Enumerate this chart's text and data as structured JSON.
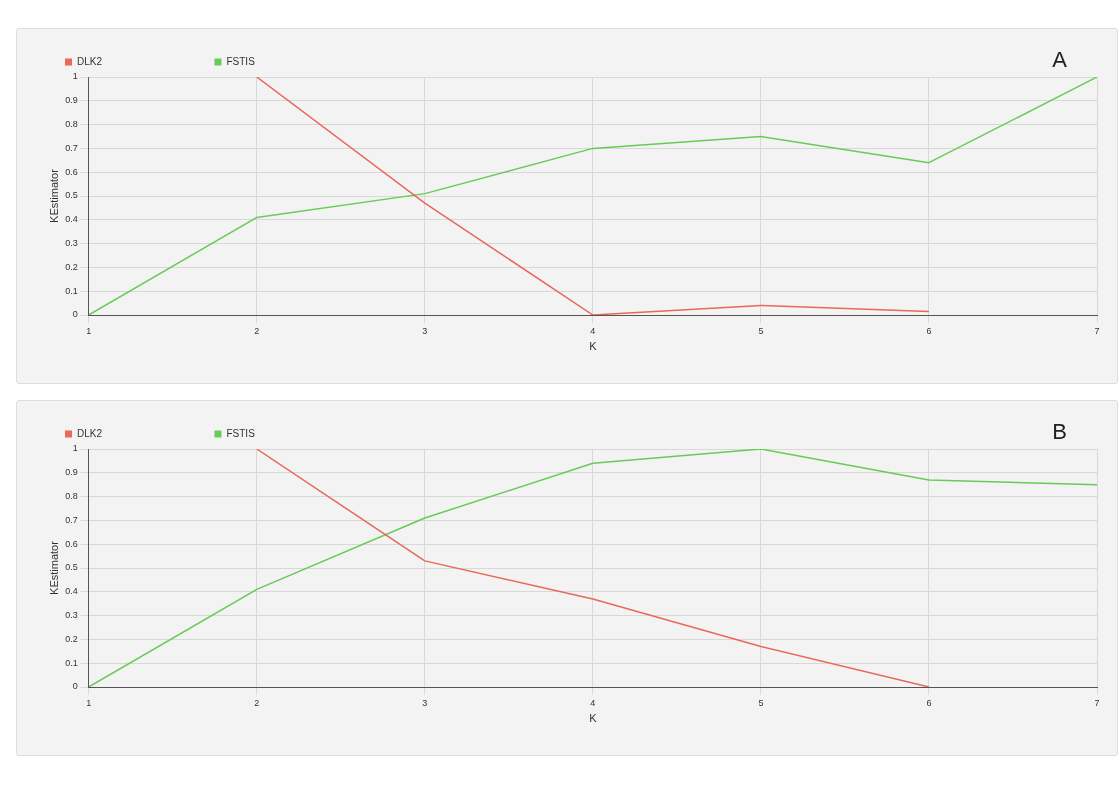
{
  "chart_data": [
    {
      "type": "line",
      "annotations": [
        "A"
      ],
      "xlabel": "K",
      "ylabel": "KEstimator",
      "x": [
        1,
        2,
        3,
        4,
        5,
        6,
        7
      ],
      "xlim": [
        1,
        7
      ],
      "xticks": [
        1,
        2,
        3,
        4,
        5,
        6,
        7
      ],
      "ylim": [
        0,
        1
      ],
      "yticks": [
        0,
        0.1,
        0.2,
        0.3,
        0.4,
        0.5,
        0.6,
        0.7,
        0.8,
        0.9,
        1
      ],
      "grid": true,
      "legend": "top left",
      "marker": "none",
      "series": [
        {
          "name": "DLK2",
          "color": "#e8685a",
          "values": [
            null,
            1,
            0.47,
            0,
            0.04,
            0.015,
            null
          ]
        },
        {
          "name": "FSTIS",
          "color": "#66cc55",
          "values": [
            0,
            0.41,
            0.51,
            0.7,
            0.75,
            0.64,
            1
          ]
        }
      ]
    },
    {
      "type": "line",
      "annotations": [
        "B"
      ],
      "xlabel": "K",
      "ylabel": "KEstimator",
      "x": [
        1,
        2,
        3,
        4,
        5,
        6,
        7
      ],
      "xlim": [
        1,
        7
      ],
      "xticks": [
        1,
        2,
        3,
        4,
        5,
        6,
        7
      ],
      "ylim": [
        0,
        1
      ],
      "yticks": [
        0,
        0.1,
        0.2,
        0.3,
        0.4,
        0.5,
        0.6,
        0.7,
        0.8,
        0.9,
        1
      ],
      "grid": true,
      "legend": "top left",
      "marker": "none",
      "series": [
        {
          "name": "DLK2",
          "color": "#e8685a",
          "values": [
            null,
            1,
            0.53,
            0.37,
            0.17,
            0,
            null
          ]
        },
        {
          "name": "FSTIS",
          "color": "#66cc55",
          "values": [
            0,
            0.41,
            0.71,
            0.94,
            1,
            0.87,
            0.85
          ]
        }
      ]
    }
  ]
}
